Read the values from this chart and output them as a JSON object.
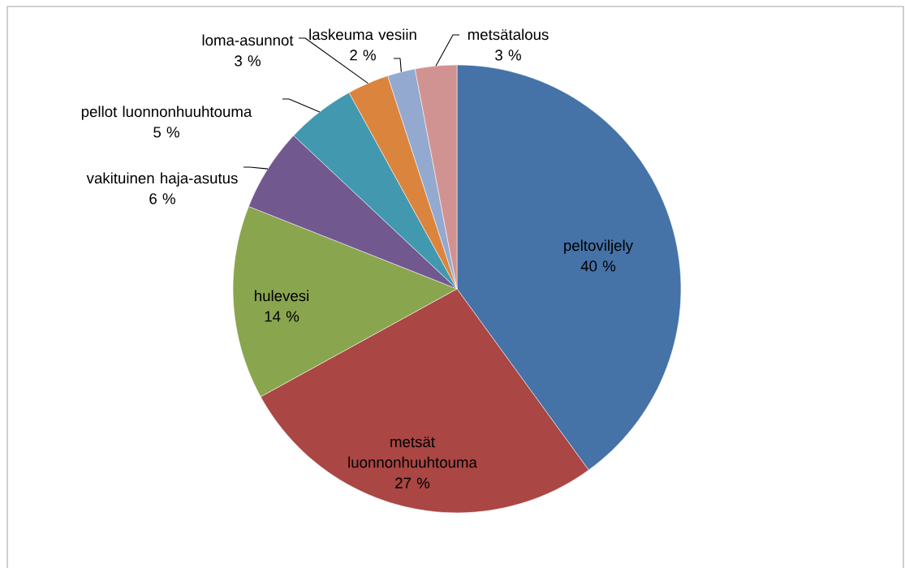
{
  "chart_data": {
    "type": "pie",
    "categories": [
      "peltoviljely",
      "metsät luonnonhuuhtouma",
      "hulevesi",
      "vakituinen haja-asutus",
      "pellot luonnonhuuhtouma",
      "loma-asunnot",
      "laskeuma vesiin",
      "metsätalous"
    ],
    "values": [
      40,
      27,
      14,
      6,
      5,
      3,
      2,
      3
    ],
    "value_labels": [
      "40 %",
      "27 %",
      "14 %",
      "6 %",
      "5 %",
      "3 %",
      "2 %",
      "3 %"
    ],
    "colors": [
      "#4572a7",
      "#aa4643",
      "#89a54e",
      "#71588f",
      "#4198af",
      "#db843d",
      "#93a9cf",
      "#d19392"
    ]
  }
}
